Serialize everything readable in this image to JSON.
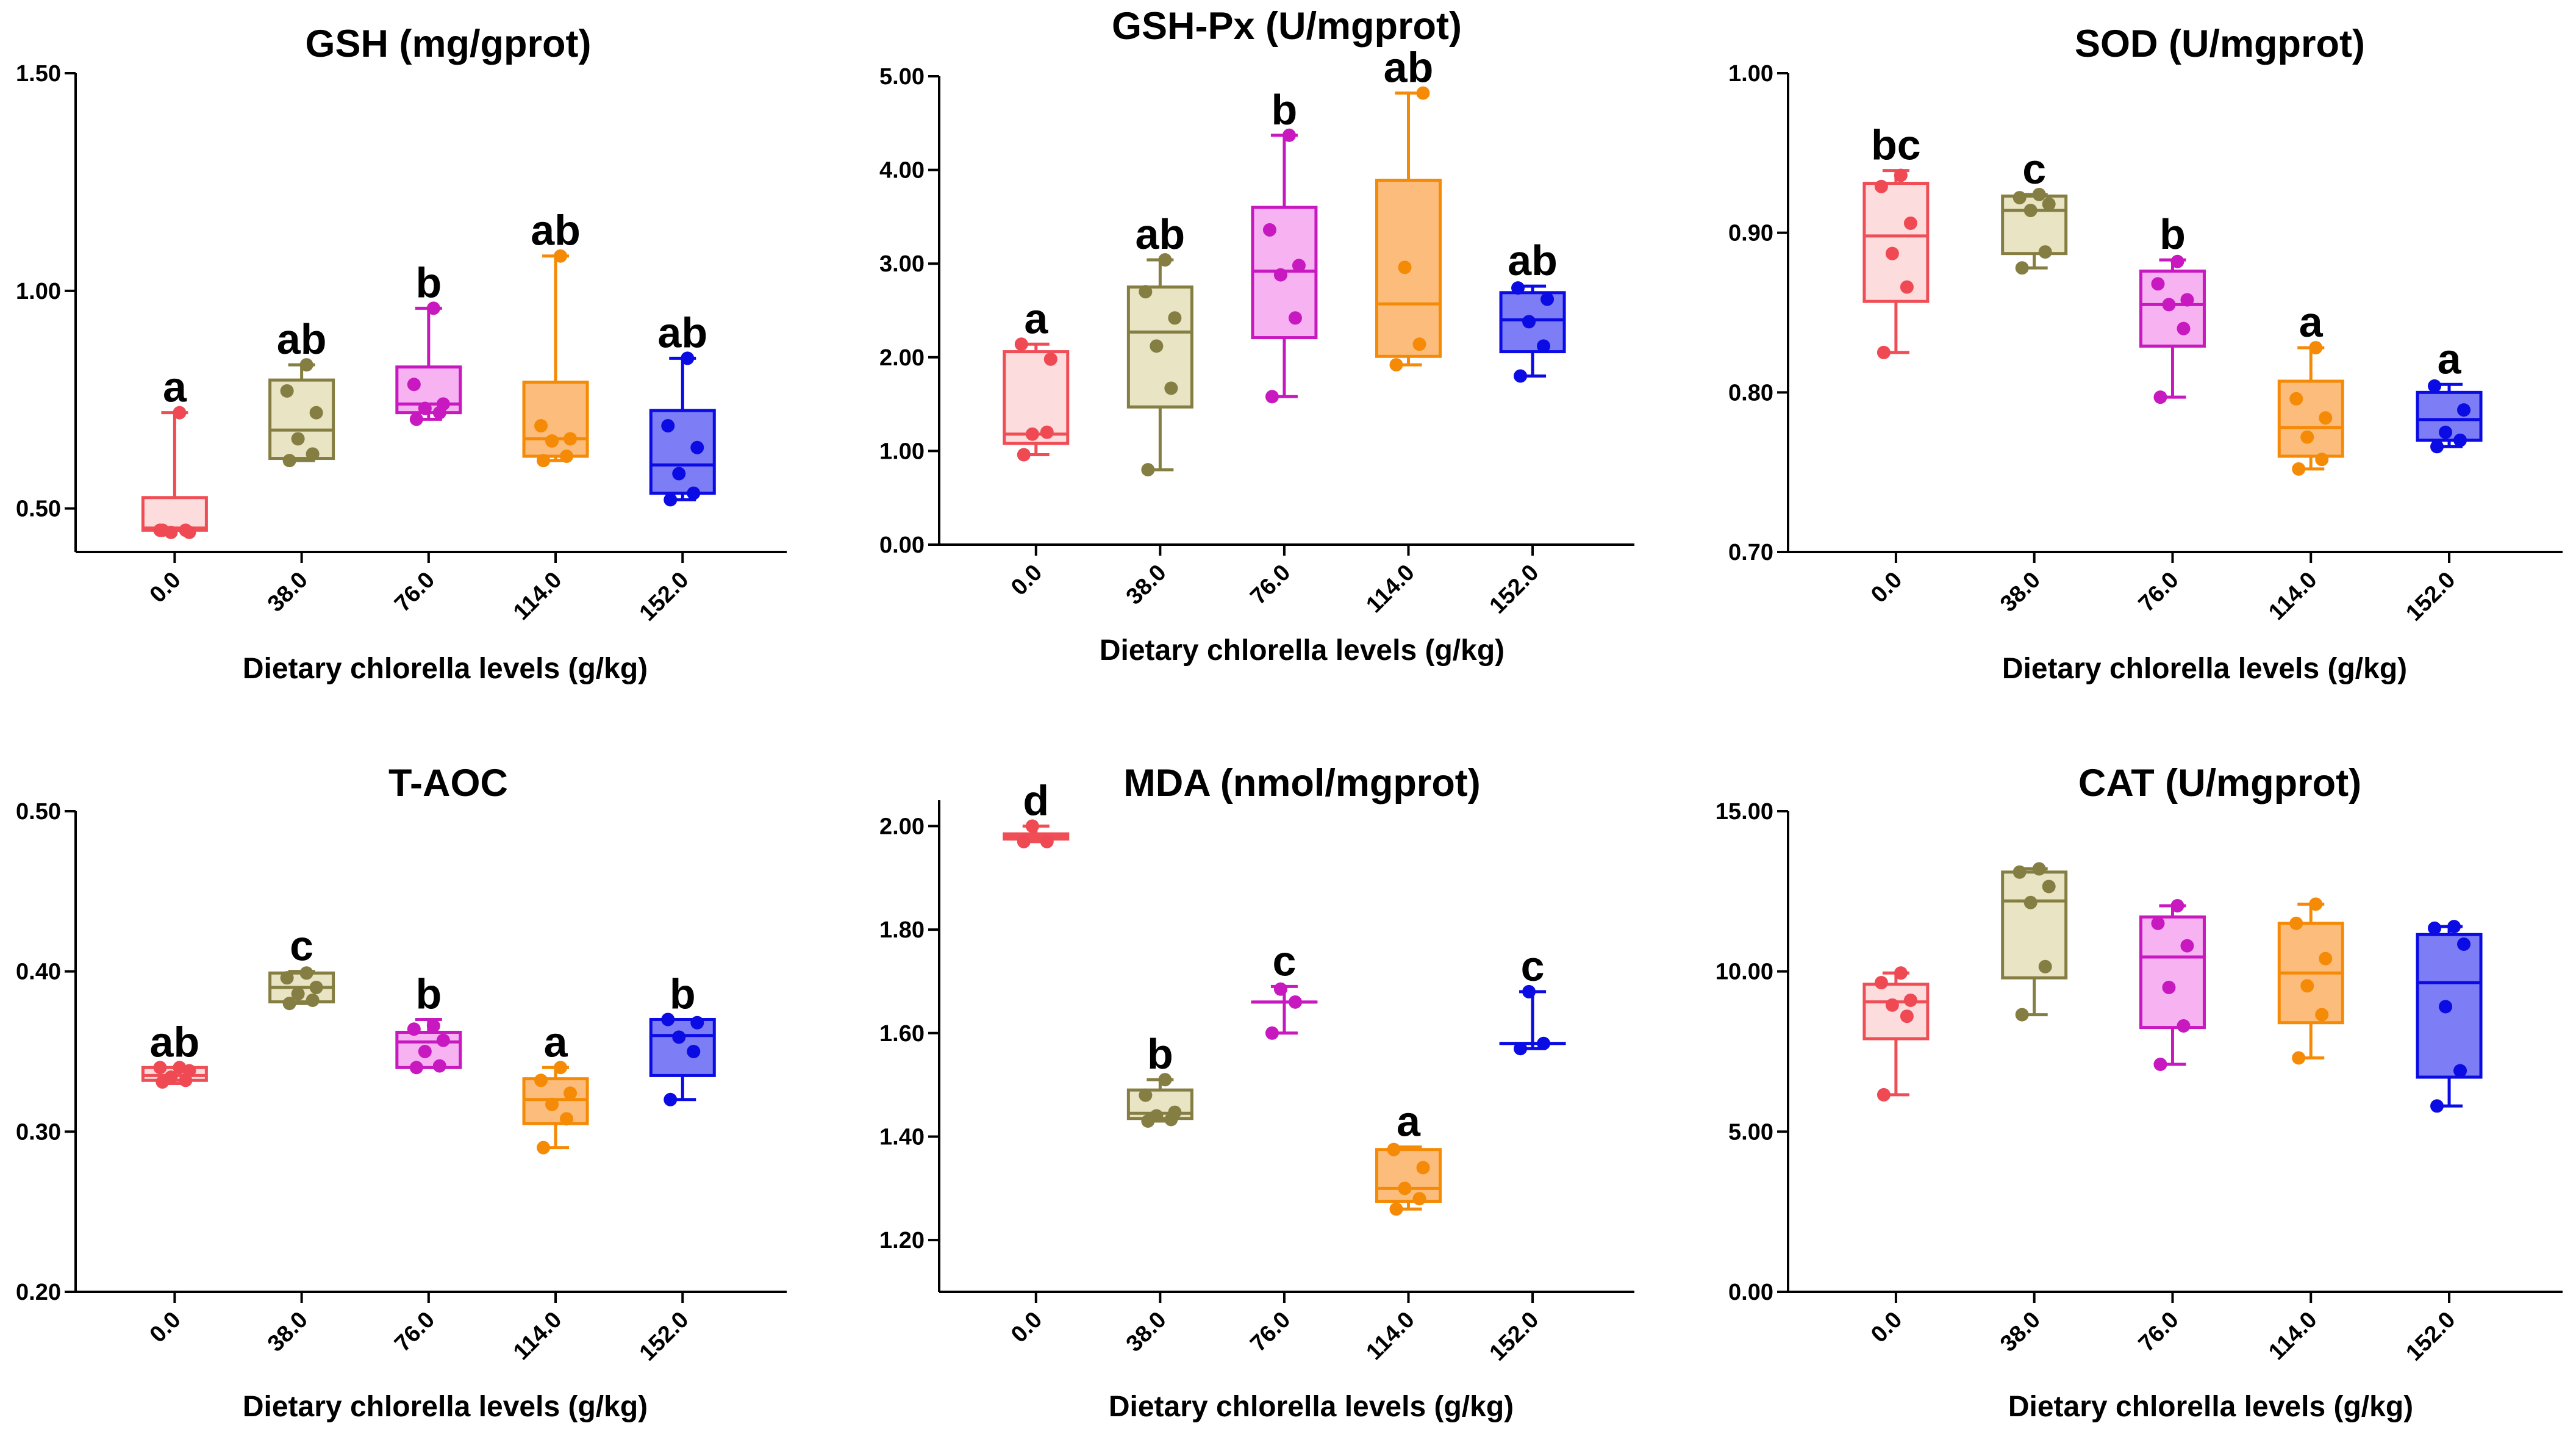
{
  "chart_data": [
    {
      "type": "box",
      "title": "GSH (mg/gprot)",
      "xlabel": "Dietary chlorella levels (g/kg)",
      "ylabel": "",
      "categories": [
        "0.0",
        "38.0",
        "76.0",
        "114.0",
        "152.0"
      ],
      "ylim": [
        0.4,
        1.5
      ],
      "yticks": [
        "0.50",
        "1.00",
        "1.50"
      ],
      "boxes": [
        {
          "q1": 0.45,
          "median": 0.455,
          "q3": 0.525,
          "min": 0.45,
          "max": 0.72,
          "points": [
            0.45,
            0.45,
            0.445,
            0.445,
            0.45,
            0.72
          ],
          "sig": "a"
        },
        {
          "q1": 0.615,
          "median": 0.68,
          "q3": 0.795,
          "min": 0.61,
          "max": 0.83,
          "points": [
            0.61,
            0.625,
            0.66,
            0.72,
            0.77,
            0.83
          ],
          "sig": "ab"
        },
        {
          "q1": 0.72,
          "median": 0.74,
          "q3": 0.825,
          "min": 0.705,
          "max": 0.96,
          "points": [
            0.705,
            0.72,
            0.73,
            0.74,
            0.785,
            0.96
          ],
          "sig": "b"
        },
        {
          "q1": 0.62,
          "median": 0.66,
          "q3": 0.79,
          "min": 0.61,
          "max": 1.08,
          "points": [
            0.61,
            0.62,
            0.655,
            0.66,
            0.69,
            1.08
          ],
          "sig": "ab"
        },
        {
          "q1": 0.535,
          "median": 0.6,
          "q3": 0.725,
          "min": 0.52,
          "max": 0.845,
          "points": [
            0.52,
            0.535,
            0.58,
            0.64,
            0.69,
            0.845
          ],
          "sig": "ab"
        }
      ]
    },
    {
      "type": "box",
      "title": "GSH-Px (U/mgprot)",
      "xlabel": "Dietary chlorella levels (g/kg)",
      "ylabel": "",
      "categories": [
        "0.0",
        "38.0",
        "76.0",
        "114.0",
        "152.0"
      ],
      "ylim": [
        0,
        5
      ],
      "yticks": [
        "0.00",
        "1.00",
        "2.00",
        "3.00",
        "4.00",
        "5.00"
      ],
      "boxes": [
        {
          "q1": 1.08,
          "median": 1.18,
          "q3": 2.06,
          "min": 0.96,
          "max": 2.14,
          "points": [
            0.96,
            1.2,
            1.18,
            1.98,
            2.14
          ],
          "sig": "a"
        },
        {
          "q1": 1.47,
          "median": 2.27,
          "q3": 2.75,
          "min": 0.8,
          "max": 3.04,
          "points": [
            0.8,
            1.67,
            2.12,
            2.42,
            2.7,
            3.04
          ],
          "sig": "ab"
        },
        {
          "q1": 2.21,
          "median": 2.92,
          "q3": 3.6,
          "min": 1.58,
          "max": 4.37,
          "points": [
            1.58,
            2.42,
            2.88,
            2.98,
            3.36,
            4.37
          ],
          "sig": "b"
        },
        {
          "q1": 2.01,
          "median": 2.57,
          "q3": 3.89,
          "min": 1.92,
          "max": 4.82,
          "points": [
            1.92,
            2.14,
            2.96,
            4.82
          ],
          "sig": "ab"
        },
        {
          "q1": 2.06,
          "median": 2.4,
          "q3": 2.69,
          "min": 1.8,
          "max": 2.76,
          "points": [
            1.8,
            2.12,
            2.38,
            2.62,
            2.74
          ],
          "sig": "ab"
        }
      ]
    },
    {
      "type": "box",
      "title": "SOD (U/mgprot)",
      "xlabel": "Dietary chlorella levels (g/kg)",
      "ylabel": "",
      "categories": [
        "0.0",
        "38.0",
        "76.0",
        "114.0",
        "152.0"
      ],
      "ylim": [
        0.7,
        1.0
      ],
      "yticks": [
        "0.70",
        "0.80",
        "0.90",
        "1.00"
      ],
      "boxes": [
        {
          "q1": 0.857,
          "median": 0.898,
          "q3": 0.931,
          "min": 0.825,
          "max": 0.939,
          "points": [
            0.825,
            0.866,
            0.887,
            0.906,
            0.929,
            0.936
          ],
          "sig": "bc"
        },
        {
          "q1": 0.887,
          "median": 0.914,
          "q3": 0.923,
          "min": 0.878,
          "max": 0.924,
          "points": [
            0.878,
            0.888,
            0.914,
            0.918,
            0.922,
            0.924
          ],
          "sig": "c"
        },
        {
          "q1": 0.829,
          "median": 0.855,
          "q3": 0.876,
          "min": 0.797,
          "max": 0.883,
          "points": [
            0.797,
            0.84,
            0.855,
            0.858,
            0.868,
            0.882
          ],
          "sig": "b"
        },
        {
          "q1": 0.76,
          "median": 0.778,
          "q3": 0.807,
          "min": 0.752,
          "max": 0.828,
          "points": [
            0.752,
            0.758,
            0.772,
            0.784,
            0.796,
            0.828
          ],
          "sig": "a"
        },
        {
          "q1": 0.77,
          "median": 0.783,
          "q3": 0.8,
          "min": 0.766,
          "max": 0.805,
          "points": [
            0.766,
            0.77,
            0.775,
            0.789,
            0.804
          ],
          "sig": "a"
        }
      ]
    },
    {
      "type": "box",
      "title": "T-AOC",
      "xlabel": "Dietary chlorella levels (g/kg)",
      "ylabel": "",
      "categories": [
        "0.0",
        "38.0",
        "76.0",
        "114.0",
        "152.0"
      ],
      "ylim": [
        0.2,
        0.5
      ],
      "yticks": [
        "0.20",
        "0.30",
        "0.40",
        "0.50"
      ],
      "boxes": [
        {
          "q1": 0.332,
          "median": 0.335,
          "q3": 0.34,
          "min": 0.33,
          "max": 0.34,
          "points": [
            0.331,
            0.332,
            0.334,
            0.338,
            0.34,
            0.34
          ],
          "sig": "ab"
        },
        {
          "q1": 0.381,
          "median": 0.39,
          "q3": 0.399,
          "min": 0.38,
          "max": 0.4,
          "points": [
            0.38,
            0.382,
            0.386,
            0.39,
            0.396,
            0.399
          ],
          "sig": "c"
        },
        {
          "q1": 0.34,
          "median": 0.356,
          "q3": 0.362,
          "min": 0.34,
          "max": 0.37,
          "points": [
            0.34,
            0.341,
            0.35,
            0.357,
            0.364,
            0.366
          ],
          "sig": "b"
        },
        {
          "q1": 0.305,
          "median": 0.32,
          "q3": 0.333,
          "min": 0.29,
          "max": 0.34,
          "points": [
            0.29,
            0.308,
            0.317,
            0.324,
            0.332,
            0.34
          ],
          "sig": "a"
        },
        {
          "q1": 0.335,
          "median": 0.36,
          "q3": 0.37,
          "min": 0.32,
          "max": 0.37,
          "points": [
            0.32,
            0.35,
            0.359,
            0.368,
            0.37
          ],
          "sig": "b"
        }
      ]
    },
    {
      "type": "box",
      "title": "MDA (nmol/mgprot)",
      "xlabel": "Dietary chlorella levels (g/kg)",
      "ylabel": "",
      "categories": [
        "0.0",
        "38.0",
        "76.0",
        "114.0",
        "152.0"
      ],
      "ylim": [
        1.1,
        2.05
      ],
      "yticks": [
        "1.20",
        "1.40",
        "1.60",
        "1.80",
        "2.00"
      ],
      "boxes": [
        {
          "q1": 1.975,
          "median": 1.98,
          "q3": 1.985,
          "min": 1.97,
          "max": 2.0,
          "points": [
            1.97,
            1.97,
            2.0
          ],
          "sig": "d"
        },
        {
          "q1": 1.435,
          "median": 1.445,
          "q3": 1.49,
          "min": 1.43,
          "max": 1.51,
          "points": [
            1.43,
            1.433,
            1.44,
            1.447,
            1.48,
            1.51
          ],
          "sig": "b"
        },
        {
          "q1": 1.66,
          "median": 1.66,
          "q3": 1.66,
          "min": 1.6,
          "max": 1.69,
          "points": [
            1.6,
            1.66,
            1.685
          ],
          "sig": "c"
        },
        {
          "q1": 1.275,
          "median": 1.3,
          "q3": 1.375,
          "min": 1.26,
          "max": 1.38,
          "points": [
            1.26,
            1.28,
            1.3,
            1.34,
            1.375
          ],
          "sig": "a"
        },
        {
          "q1": 1.58,
          "median": 1.58,
          "q3": 1.58,
          "min": 1.57,
          "max": 1.68,
          "points": [
            1.57,
            1.58,
            1.68
          ],
          "sig": "c"
        }
      ]
    },
    {
      "type": "box",
      "title": "CAT (U/mgprot)",
      "xlabel": "Dietary chlorella levels (g/kg)",
      "ylabel": "",
      "categories": [
        "0.0",
        "38.0",
        "76.0",
        "114.0",
        "152.0"
      ],
      "ylim": [
        0,
        15
      ],
      "yticks": [
        "0.00",
        "5.00",
        "10.00",
        "15.00"
      ],
      "boxes": [
        {
          "q1": 7.9,
          "median": 9.05,
          "q3": 9.6,
          "min": 6.15,
          "max": 9.95,
          "points": [
            6.15,
            8.6,
            8.95,
            9.1,
            9.65,
            9.95
          ],
          "sig": ""
        },
        {
          "q1": 9.8,
          "median": 12.2,
          "q3": 13.1,
          "min": 8.65,
          "max": 13.2,
          "points": [
            8.65,
            10.15,
            12.15,
            12.65,
            13.1,
            13.2
          ],
          "sig": ""
        },
        {
          "q1": 8.25,
          "median": 10.45,
          "q3": 11.7,
          "min": 7.1,
          "max": 12.05,
          "points": [
            7.1,
            8.3,
            9.5,
            10.8,
            11.5,
            12.05
          ],
          "sig": ""
        },
        {
          "q1": 8.4,
          "median": 9.95,
          "q3": 11.5,
          "min": 7.3,
          "max": 12.1,
          "points": [
            7.3,
            8.65,
            9.55,
            10.4,
            11.5,
            12.1
          ],
          "sig": ""
        },
        {
          "q1": 6.7,
          "median": 9.65,
          "q3": 11.15,
          "min": 5.8,
          "max": 11.4,
          "points": [
            5.8,
            6.9,
            8.9,
            10.85,
            11.35,
            11.4
          ],
          "sig": ""
        }
      ]
    }
  ],
  "group_colors": [
    {
      "fill": "#fcdcdc",
      "stroke": "#f04e57",
      "point": "#ef4a53"
    },
    {
      "fill": "#e8e4c4",
      "stroke": "#857e42",
      "point": "#857e42"
    },
    {
      "fill": "#f7b2f2",
      "stroke": "#c818c0",
      "point": "#c818c0"
    },
    {
      "fill": "#fcbd7c",
      "stroke": "#f58a06",
      "point": "#f58a06"
    },
    {
      "fill": "#7d7df6",
      "stroke": "#0b0be4",
      "point": "#0b0be4"
    }
  ]
}
